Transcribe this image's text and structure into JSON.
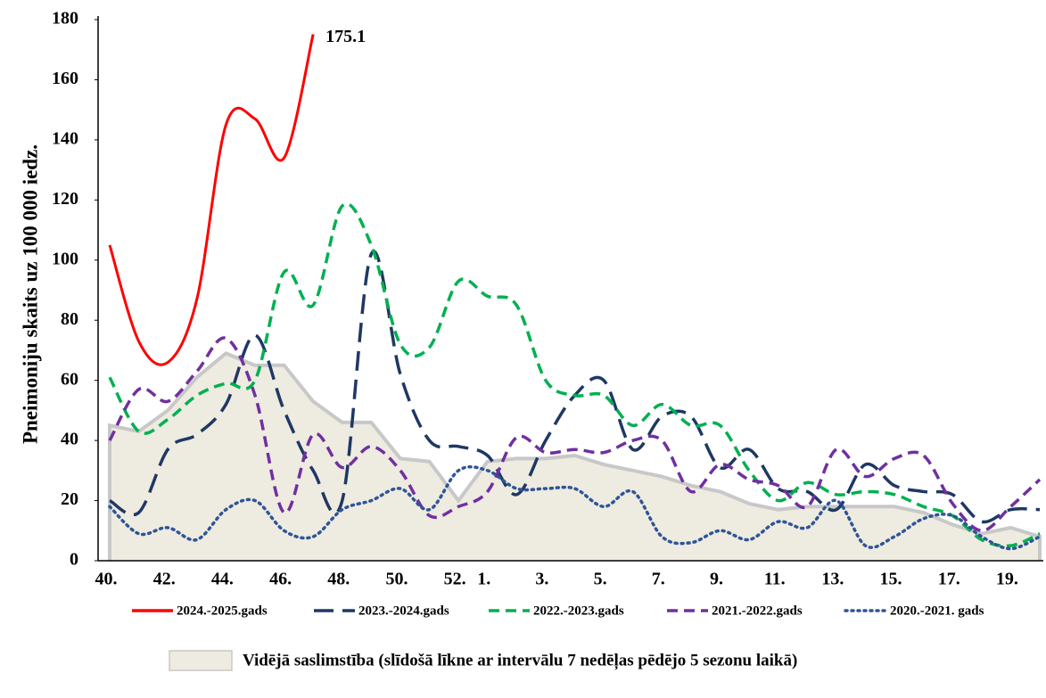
{
  "chart_data": {
    "type": "line",
    "y_label": "Pneimoniju skaits uz 100 000 iedz.",
    "categories": [
      "40.",
      null,
      "42.",
      null,
      "44.",
      null,
      "46.",
      null,
      "48.",
      null,
      "50.",
      null,
      "52.",
      "1.",
      null,
      "3.",
      null,
      "5.",
      null,
      "7.",
      null,
      "9.",
      null,
      "11.",
      null,
      "13.",
      null,
      "15.",
      null,
      "17.",
      null,
      "19.",
      null
    ],
    "ylim": [
      0,
      180
    ],
    "yticks": [
      0,
      20,
      40,
      60,
      80,
      100,
      120,
      140,
      160,
      180
    ],
    "grid": false,
    "area": {
      "name": "Vidējā saslimstība (slīdošā līkne ar intervālu 7 nedēļas pēdējo 5 sezonu laikā)",
      "color": "#eeebe0",
      "edge_color": "#c8c8c8",
      "values": [
        45,
        43,
        50,
        61,
        69,
        65,
        65,
        53,
        46,
        46,
        34,
        33,
        20,
        33,
        34,
        34,
        35,
        32,
        30,
        28,
        25,
        23,
        19,
        17,
        18,
        18,
        18,
        18,
        16,
        12,
        9,
        11,
        8
      ]
    },
    "series": [
      {
        "name": "2024.-2025.gads",
        "color": "#ff0000",
        "dash": "solid",
        "values": [
          105,
          73,
          66,
          87,
          145,
          147,
          134,
          175.1,
          null,
          null,
          null,
          null,
          null,
          null,
          null,
          null,
          null,
          null,
          null,
          null,
          null,
          null,
          null,
          null,
          null,
          null,
          null,
          null,
          null,
          null,
          null,
          null,
          null
        ]
      },
      {
        "name": "2023.-2024.gads",
        "color": "#1f3864",
        "dash": "long-dash",
        "values": [
          20,
          16,
          37,
          42,
          52,
          75,
          50,
          30,
          20,
          102,
          62,
          40,
          38,
          35,
          22,
          40,
          55,
          60,
          37,
          48,
          48,
          31,
          37,
          24,
          23,
          17,
          32,
          25,
          23,
          22,
          13,
          17,
          17
        ]
      },
      {
        "name": "2022.-2023.gads",
        "color": "#00b050",
        "dash": "dash",
        "values": [
          61,
          43,
          47,
          55,
          59,
          60,
          96,
          85,
          118,
          105,
          72,
          71,
          93,
          88,
          85,
          60,
          55,
          55,
          45,
          52,
          45,
          45,
          30,
          20,
          26,
          22,
          23,
          22,
          18,
          15,
          7,
          5,
          9
        ]
      },
      {
        "name": "2021.-2022.gads",
        "color": "#7030a0",
        "dash": "dash",
        "values": [
          40,
          57,
          53,
          63,
          74,
          55,
          16,
          42,
          31,
          38,
          30,
          15,
          18,
          23,
          41,
          36,
          37,
          36,
          40,
          40,
          23,
          32,
          27,
          25,
          18,
          37,
          28,
          34,
          35,
          19,
          10,
          18,
          27
        ]
      },
      {
        "name": "2020.-2021. gads",
        "color": "#2f5597",
        "dash": "dotted",
        "values": [
          18,
          9,
          11,
          7,
          17,
          20,
          10,
          8,
          17,
          20,
          24,
          17,
          30,
          30,
          24,
          24,
          24,
          18,
          23,
          8,
          6,
          10,
          7,
          13,
          11,
          20,
          5,
          8,
          14,
          15,
          8,
          4,
          8
        ]
      }
    ]
  }
}
